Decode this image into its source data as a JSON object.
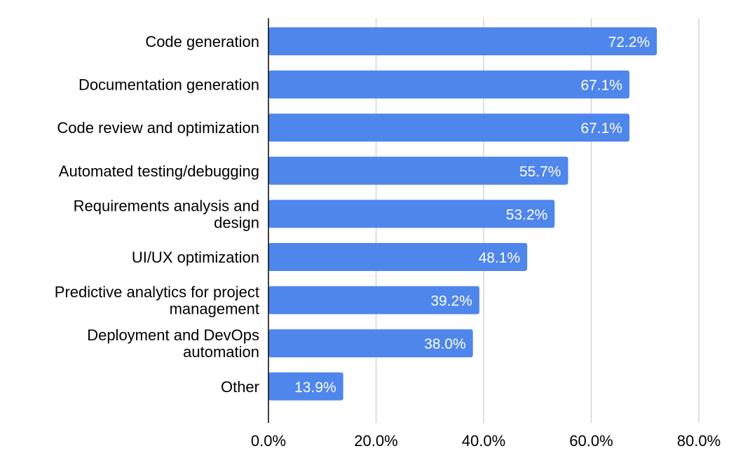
{
  "chart_data": {
    "type": "bar",
    "orientation": "horizontal",
    "categories": [
      [
        "Code generation"
      ],
      [
        "Documentation generation"
      ],
      [
        "Code review and optimization"
      ],
      [
        "Automated testing/debugging"
      ],
      [
        "Requirements analysis and",
        "design"
      ],
      [
        "UI/UX optimization"
      ],
      [
        "Predictive analytics for project",
        "management"
      ],
      [
        "Deployment and DevOps",
        "automation"
      ],
      [
        "Other"
      ]
    ],
    "values": [
      72.2,
      67.1,
      67.1,
      55.7,
      53.2,
      48.1,
      39.2,
      38.0,
      13.9
    ],
    "data_labels": [
      "72.2%",
      "67.1%",
      "67.1%",
      "55.7%",
      "53.2%",
      "48.1%",
      "39.2%",
      "38.0%",
      "13.9%"
    ],
    "xlim": [
      0,
      80
    ],
    "x_ticks": [
      0,
      20,
      40,
      60,
      80
    ],
    "x_tick_labels": [
      "0.0%",
      "20.0%",
      "40.0%",
      "60.0%",
      "80.0%"
    ],
    "grid": true,
    "legend": "none",
    "bar_color": "#4f86ec",
    "grid_color": "#cccccc",
    "axis_color": "#000000",
    "label_color": "#000000",
    "data_label_color": "#ffffff"
  }
}
